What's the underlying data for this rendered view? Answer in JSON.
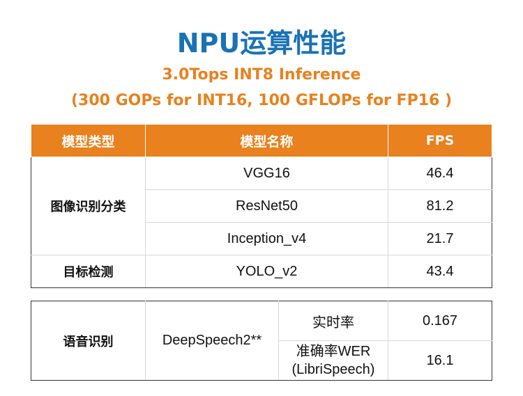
{
  "header": {
    "title": "NPU运算性能",
    "subtitle_line1": "3.0Tops INT8 Inference",
    "subtitle_line2": "(300 GOPs for INT16, 100 GFLOPs for FP16 )"
  },
  "table1": {
    "headers": [
      "模型类型",
      "模型名称",
      "FPS"
    ],
    "groups": [
      {
        "category": "图像识别分类",
        "rows": [
          {
            "model": "VGG16",
            "fps": "46.4"
          },
          {
            "model": "ResNet50",
            "fps": "81.2"
          },
          {
            "model": "Inception_v4",
            "fps": "21.7"
          }
        ]
      },
      {
        "category": "目标检测",
        "rows": [
          {
            "model": "YOLO_v2",
            "fps": "43.4"
          }
        ]
      }
    ]
  },
  "table2": {
    "category": "语音识别",
    "model": "DeepSpeech2**",
    "rows": [
      {
        "metric": "实时率",
        "metric_sub": "",
        "value": "0.167"
      },
      {
        "metric": "准确率WER",
        "metric_sub": "(LibriSpeech)",
        "value": "16.1"
      }
    ]
  },
  "colors": {
    "title": "#1a72b6",
    "accent": "#e8811e",
    "header_text": "#ffffff"
  }
}
